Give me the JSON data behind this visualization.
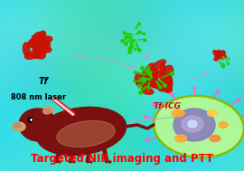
{
  "title": "Targeted NIR imaging and PTT",
  "title_color": "#ff0000",
  "title_fontsize": 8.5,
  "label_tf": "Tf",
  "label_laser": "808 nm laser",
  "label_tf_icg": "Tf-ICG",
  "label_tf_icg_color": "#dd0000",
  "arrow_color": "#aaaacc",
  "protein_red": "#cc1100",
  "icg_green": "#22cc00",
  "mouse_dark": "#7a1010",
  "mouse_light": "#d4a070",
  "cell_fill": "#ccff88",
  "cell_edge": "#88bb00",
  "nucleus_fill": "#8877bb",
  "nucleus_light": "#bbaadd",
  "figsize": [
    2.7,
    1.89
  ],
  "dpi": 100,
  "bg_cyan": "#55dddd",
  "bg_light": "#aaeeff"
}
